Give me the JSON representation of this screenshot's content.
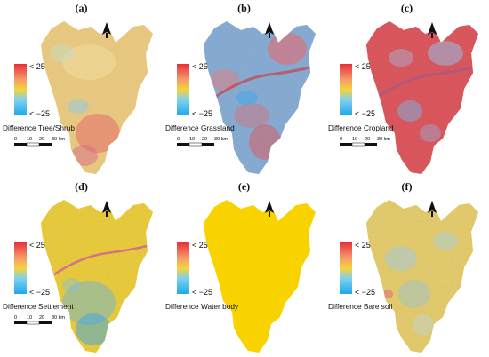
{
  "figure": {
    "legend_max_label": "< 25",
    "legend_min_label": "< −25",
    "scale_ticks": [
      "0",
      "10",
      "20",
      "30 km"
    ],
    "colors": {
      "high": "#e8343a",
      "mid": "#f5d43a",
      "low": "#2fb0ea",
      "neutral_map": "#f8d300"
    }
  },
  "panels": [
    {
      "id": "a",
      "label": "(a)",
      "legend_title": "Difference Tree/Shrub",
      "pattern": "mostly-neutral"
    },
    {
      "id": "b",
      "label": "(b)",
      "legend_title": "Difference Grassland",
      "pattern": "mixed-blue-red"
    },
    {
      "id": "c",
      "label": "(c)",
      "legend_title": "Difference Cropland",
      "pattern": "mostly-red"
    },
    {
      "id": "d",
      "label": "(d)",
      "legend_title": "Difference Settlement",
      "pattern": "yellow-blue-south"
    },
    {
      "id": "e",
      "label": "(e)",
      "legend_title": "Difference Water body",
      "pattern": "uniform-yellow"
    },
    {
      "id": "f",
      "label": "(f)",
      "legend_title": "Difference Bare soil",
      "pattern": "yellow-light-blue"
    }
  ]
}
